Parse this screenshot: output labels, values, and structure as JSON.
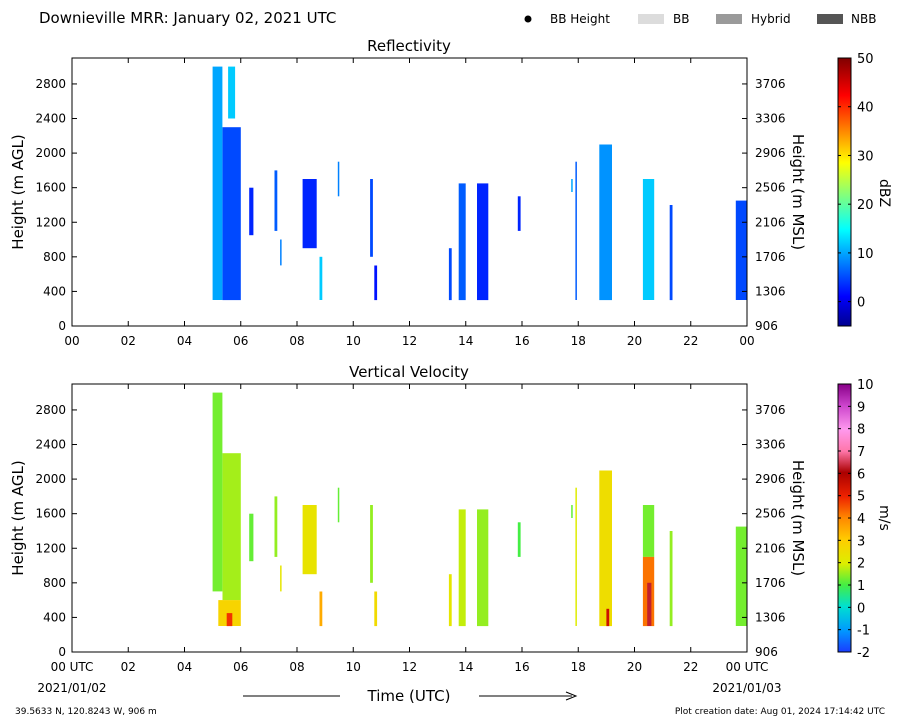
{
  "header": {
    "title": "Downieville MRR:  January 02, 2021 UTC",
    "legend": [
      {
        "label": "BB Height",
        "marker": "dot",
        "color": "#000000"
      },
      {
        "label": "BB",
        "marker": "swatch",
        "color": "#dcdcdc"
      },
      {
        "label": "Hybrid",
        "marker": "swatch",
        "color": "#9a9a9a"
      },
      {
        "label": "NBB",
        "marker": "swatch",
        "color": "#555555"
      }
    ]
  },
  "footer": {
    "location": "39.5633 N, 120.8243 W, 906 m",
    "created": "Plot creation date: Aug 01, 2024 17:14:42 UTC",
    "xlabel": "Time (UTC)",
    "start_date": "2021/01/02",
    "end_date": "2021/01/03"
  },
  "chart_data": [
    {
      "type": "heatmap",
      "title": "Reflectivity",
      "ylabel": "Height (m AGL)",
      "ylabel_right": "Height (m MSL)",
      "colorbar_label": "dBZ",
      "x_ticks": [
        "00",
        "02",
        "04",
        "06",
        "08",
        "10",
        "12",
        "14",
        "16",
        "18",
        "20",
        "22",
        "00"
      ],
      "xlim_hours": [
        0,
        24
      ],
      "y_ticks": [
        0,
        400,
        800,
        1200,
        1600,
        2000,
        2400,
        2800
      ],
      "ylim": [
        0,
        3100
      ],
      "y_ticks_right": [
        "906",
        "1306",
        "1706",
        "2106",
        "2506",
        "2906",
        "3306",
        "3706"
      ],
      "colorbar": {
        "ticks": [
          0,
          10,
          20,
          30,
          40,
          50
        ],
        "range": [
          -5,
          50
        ],
        "colormap": "jet"
      },
      "cells": [
        {
          "t": [
            5.0,
            5.35
          ],
          "h": [
            300,
            3000
          ],
          "v": 10
        },
        {
          "t": [
            5.35,
            6.0
          ],
          "h": [
            300,
            2300
          ],
          "v": 5
        },
        {
          "t": [
            5.55,
            5.8
          ],
          "h": [
            2400,
            3000
          ],
          "v": 12
        },
        {
          "t": [
            6.3,
            6.45
          ],
          "h": [
            1050,
            1600
          ],
          "v": 3
        },
        {
          "t": [
            7.2,
            7.3
          ],
          "h": [
            1100,
            1800
          ],
          "v": 6
        },
        {
          "t": [
            7.4,
            7.45
          ],
          "h": [
            700,
            1000
          ],
          "v": 8
        },
        {
          "t": [
            8.2,
            8.7
          ],
          "h": [
            900,
            1700
          ],
          "v": 3
        },
        {
          "t": [
            8.8,
            8.9
          ],
          "h": [
            300,
            800
          ],
          "v": 12
        },
        {
          "t": [
            9.45,
            9.5
          ],
          "h": [
            1500,
            1900
          ],
          "v": 8
        },
        {
          "t": [
            10.6,
            10.7
          ],
          "h": [
            800,
            1700
          ],
          "v": 5
        },
        {
          "t": [
            10.75,
            10.85
          ],
          "h": [
            300,
            700
          ],
          "v": 2
        },
        {
          "t": [
            13.4,
            13.5
          ],
          "h": [
            300,
            900
          ],
          "v": 5
        },
        {
          "t": [
            13.75,
            14.0
          ],
          "h": [
            300,
            1650
          ],
          "v": 6
        },
        {
          "t": [
            14.4,
            14.8
          ],
          "h": [
            300,
            1650
          ],
          "v": 3
        },
        {
          "t": [
            15.85,
            15.95
          ],
          "h": [
            1100,
            1500
          ],
          "v": 3
        },
        {
          "t": [
            17.75,
            17.8
          ],
          "h": [
            1550,
            1700
          ],
          "v": 10
        },
        {
          "t": [
            17.9,
            17.95
          ],
          "h": [
            300,
            1900
          ],
          "v": 6
        },
        {
          "t": [
            18.75,
            19.2
          ],
          "h": [
            300,
            2100
          ],
          "v": 9
        },
        {
          "t": [
            20.3,
            20.7
          ],
          "h": [
            300,
            1700
          ],
          "v": 12
        },
        {
          "t": [
            21.25,
            21.35
          ],
          "h": [
            300,
            1400
          ],
          "v": 5
        },
        {
          "t": [
            23.6,
            24.0
          ],
          "h": [
            300,
            1450
          ],
          "v": 5
        }
      ]
    },
    {
      "type": "heatmap",
      "title": "Vertical Velocity",
      "ylabel": "Height (m AGL)",
      "ylabel_right": "Height (m MSL)",
      "colorbar_label": "m/s",
      "x_ticks": [
        "00 UTC",
        "02",
        "04",
        "06",
        "08",
        "10",
        "12",
        "14",
        "16",
        "18",
        "20",
        "22",
        "00 UTC"
      ],
      "xlim_hours": [
        0,
        24
      ],
      "y_ticks": [
        0,
        400,
        800,
        1200,
        1600,
        2000,
        2400,
        2800
      ],
      "ylim": [
        0,
        3100
      ],
      "y_ticks_right": [
        "906",
        "1306",
        "1706",
        "2106",
        "2506",
        "2906",
        "3306",
        "3706"
      ],
      "colorbar": {
        "ticks": [
          -2,
          -1,
          0,
          1,
          2,
          3,
          4,
          5,
          6,
          7,
          8,
          9,
          10
        ],
        "range": [
          -2,
          10
        ],
        "colormap": "velocity"
      },
      "cells": [
        {
          "t": [
            5.0,
            5.35
          ],
          "h": [
            700,
            3000
          ],
          "v": 1.3
        },
        {
          "t": [
            5.35,
            6.0
          ],
          "h": [
            600,
            2300
          ],
          "v": 1.6
        },
        {
          "t": [
            5.2,
            6.0
          ],
          "h": [
            300,
            600
          ],
          "v": 2.8
        },
        {
          "t": [
            5.5,
            5.7
          ],
          "h": [
            300,
            450
          ],
          "v": 4.8
        },
        {
          "t": [
            6.3,
            6.45
          ],
          "h": [
            1050,
            1600
          ],
          "v": 1.2
        },
        {
          "t": [
            7.2,
            7.3
          ],
          "h": [
            1100,
            1800
          ],
          "v": 1.5
        },
        {
          "t": [
            7.4,
            7.45
          ],
          "h": [
            700,
            1000
          ],
          "v": 2.2
        },
        {
          "t": [
            8.2,
            8.7
          ],
          "h": [
            900,
            1700
          ],
          "v": 2.3
        },
        {
          "t": [
            8.8,
            8.9
          ],
          "h": [
            300,
            700
          ],
          "v": 3.5
        },
        {
          "t": [
            9.45,
            9.5
          ],
          "h": [
            1500,
            1900
          ],
          "v": 1.2
        },
        {
          "t": [
            10.6,
            10.7
          ],
          "h": [
            800,
            1700
          ],
          "v": 1.5
        },
        {
          "t": [
            10.75,
            10.85
          ],
          "h": [
            300,
            700
          ],
          "v": 2.6
        },
        {
          "t": [
            13.4,
            13.5
          ],
          "h": [
            300,
            900
          ],
          "v": 2.2
        },
        {
          "t": [
            13.75,
            14.0
          ],
          "h": [
            300,
            1650
          ],
          "v": 1.8
        },
        {
          "t": [
            14.4,
            14.8
          ],
          "h": [
            300,
            1650
          ],
          "v": 1.5
        },
        {
          "t": [
            15.85,
            15.95
          ],
          "h": [
            1100,
            1500
          ],
          "v": 1.0
        },
        {
          "t": [
            17.75,
            17.8
          ],
          "h": [
            1550,
            1700
          ],
          "v": 1.2
        },
        {
          "t": [
            17.9,
            17.95
          ],
          "h": [
            300,
            1900
          ],
          "v": 2.0
        },
        {
          "t": [
            18.75,
            19.2
          ],
          "h": [
            300,
            2100
          ],
          "v": 2.5
        },
        {
          "t": [
            19.0,
            19.1
          ],
          "h": [
            300,
            500
          ],
          "v": 5.5
        },
        {
          "t": [
            20.3,
            20.7
          ],
          "h": [
            1100,
            1700
          ],
          "v": 1.3
        },
        {
          "t": [
            20.3,
            20.7
          ],
          "h": [
            300,
            1100
          ],
          "v": 4.2
        },
        {
          "t": [
            20.45,
            20.6
          ],
          "h": [
            300,
            800
          ],
          "v": 6.3
        },
        {
          "t": [
            21.25,
            21.35
          ],
          "h": [
            300,
            1400
          ],
          "v": 1.5
        },
        {
          "t": [
            23.6,
            24.0
          ],
          "h": [
            300,
            1450
          ],
          "v": 1.3
        }
      ]
    }
  ]
}
